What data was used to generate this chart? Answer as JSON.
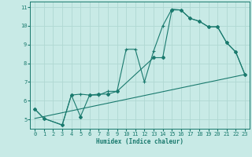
{
  "xlabel": "Humidex (Indice chaleur)",
  "bg_color": "#c8eae6",
  "grid_color": "#b0d8d2",
  "line_color": "#1a7a6e",
  "xlim": [
    -0.5,
    23.5
  ],
  "ylim": [
    4.5,
    11.3
  ],
  "xticks": [
    0,
    1,
    2,
    3,
    4,
    5,
    6,
    7,
    8,
    9,
    10,
    11,
    12,
    13,
    14,
    15,
    16,
    17,
    18,
    19,
    20,
    21,
    22,
    23
  ],
  "yticks": [
    5,
    6,
    7,
    8,
    9,
    10,
    11
  ],
  "line1_x": [
    0,
    1,
    3,
    4,
    5,
    6,
    7,
    8,
    9,
    10,
    11,
    12,
    13,
    14,
    15,
    16,
    17,
    18,
    19,
    20,
    21,
    22,
    23
  ],
  "line1_y": [
    5.55,
    5.05,
    4.7,
    6.3,
    6.35,
    6.3,
    6.3,
    6.5,
    6.5,
    8.75,
    8.75,
    7.0,
    8.65,
    10.0,
    10.9,
    10.85,
    10.4,
    10.25,
    9.95,
    9.95,
    9.1,
    8.6,
    7.4
  ],
  "line2_x": [
    0,
    1,
    3,
    4,
    5,
    6,
    7,
    8,
    9,
    13,
    14,
    15,
    16,
    17,
    18,
    19,
    20,
    21,
    22,
    23
  ],
  "line2_y": [
    5.55,
    5.05,
    4.7,
    6.3,
    5.15,
    6.3,
    6.35,
    6.35,
    6.5,
    8.3,
    8.3,
    10.85,
    10.85,
    10.4,
    10.25,
    9.95,
    9.95,
    9.1,
    8.6,
    7.4
  ],
  "line3_x": [
    0,
    23
  ],
  "line3_y": [
    5.05,
    7.4
  ]
}
